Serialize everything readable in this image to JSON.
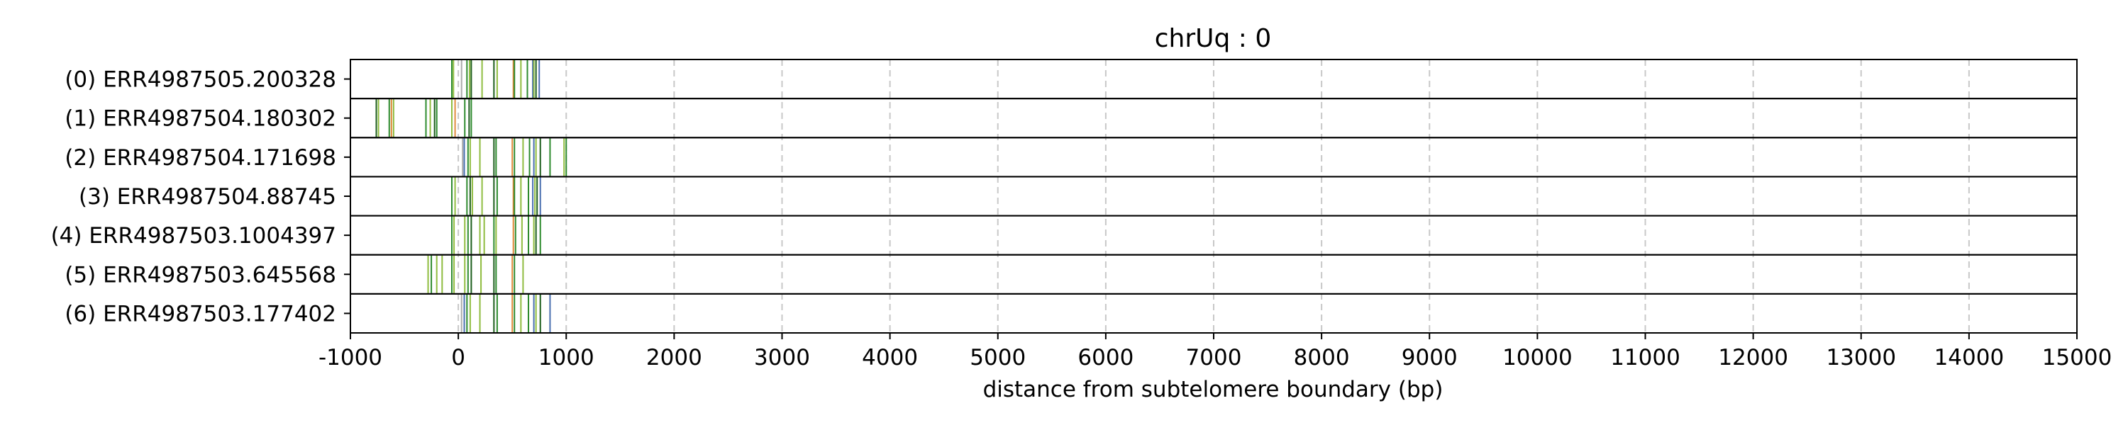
{
  "chart_data": {
    "type": "scatter",
    "title": "chrUq : 0",
    "xlabel": "distance from subtelomere boundary (bp)",
    "ylabel": "",
    "xlim": [
      -1000,
      15000
    ],
    "grid": "vertical-dashed",
    "x_ticks": [
      {
        "value": -1000,
        "label": "-1000"
      },
      {
        "value": 0,
        "label": "0"
      },
      {
        "value": 1000,
        "label": "1000"
      },
      {
        "value": 2000,
        "label": "2000"
      },
      {
        "value": 3000,
        "label": "3000"
      },
      {
        "value": 4000,
        "label": "4000"
      },
      {
        "value": 5000,
        "label": "5000"
      },
      {
        "value": 6000,
        "label": "6000"
      },
      {
        "value": 7000,
        "label": "7000"
      },
      {
        "value": 8000,
        "label": "8000"
      },
      {
        "value": 9000,
        "label": "9000"
      },
      {
        "value": 10000,
        "label": "10000"
      },
      {
        "value": 11000,
        "label": "11000"
      },
      {
        "value": 12000,
        "label": "12000"
      },
      {
        "value": 13000,
        "label": "13000"
      },
      {
        "value": 14000,
        "label": "14000"
      },
      {
        "value": 15000,
        "label": "15000"
      }
    ],
    "colors": {
      "green": "#2e8b2e",
      "darkgreen": "#1d5e1d",
      "olive": "#8fbc3f",
      "orange": "#e08a3c",
      "blue": "#4a6fb0",
      "gray": "#aaaaaa",
      "grid": "#c8c8c8"
    },
    "rows": [
      {
        "label": "(0) ERR4987505.200328",
        "marks": [
          {
            "x": -60,
            "c": "green"
          },
          {
            "x": -45,
            "c": "olive"
          },
          {
            "x": 30,
            "c": "gray"
          },
          {
            "x": 80,
            "c": "green"
          },
          {
            "x": 105,
            "c": "olive"
          },
          {
            "x": 120,
            "c": "darkgreen"
          },
          {
            "x": 220,
            "c": "olive"
          },
          {
            "x": 330,
            "c": "darkgreen"
          },
          {
            "x": 360,
            "c": "olive"
          },
          {
            "x": 510,
            "c": "orange"
          },
          {
            "x": 520,
            "c": "green"
          },
          {
            "x": 580,
            "c": "olive"
          },
          {
            "x": 640,
            "c": "green"
          },
          {
            "x": 690,
            "c": "blue"
          },
          {
            "x": 700,
            "c": "olive"
          },
          {
            "x": 720,
            "c": "darkgreen"
          },
          {
            "x": 750,
            "c": "blue"
          }
        ]
      },
      {
        "label": "(1) ERR4987504.180302",
        "marks": [
          {
            "x": -760,
            "c": "darkgreen"
          },
          {
            "x": -740,
            "c": "olive"
          },
          {
            "x": -640,
            "c": "green"
          },
          {
            "x": -620,
            "c": "orange"
          },
          {
            "x": -600,
            "c": "olive"
          },
          {
            "x": -300,
            "c": "green"
          },
          {
            "x": -260,
            "c": "olive"
          },
          {
            "x": -220,
            "c": "darkgreen"
          },
          {
            "x": -200,
            "c": "green"
          },
          {
            "x": -60,
            "c": "olive"
          },
          {
            "x": -30,
            "c": "orange"
          },
          {
            "x": 60,
            "c": "green"
          },
          {
            "x": 100,
            "c": "darkgreen"
          },
          {
            "x": 120,
            "c": "green"
          }
        ]
      },
      {
        "label": "(2) ERR4987504.171698",
        "marks": [
          {
            "x": 40,
            "c": "gray"
          },
          {
            "x": 55,
            "c": "blue"
          },
          {
            "x": 90,
            "c": "green"
          },
          {
            "x": 110,
            "c": "olive"
          },
          {
            "x": 200,
            "c": "olive"
          },
          {
            "x": 330,
            "c": "darkgreen"
          },
          {
            "x": 350,
            "c": "green"
          },
          {
            "x": 500,
            "c": "orange"
          },
          {
            "x": 520,
            "c": "green"
          },
          {
            "x": 600,
            "c": "olive"
          },
          {
            "x": 660,
            "c": "green"
          },
          {
            "x": 700,
            "c": "blue"
          },
          {
            "x": 720,
            "c": "olive"
          },
          {
            "x": 760,
            "c": "darkgreen"
          },
          {
            "x": 850,
            "c": "green"
          },
          {
            "x": 980,
            "c": "olive"
          },
          {
            "x": 1000,
            "c": "green"
          }
        ]
      },
      {
        "label": "(3) ERR4987504.88745",
        "marks": [
          {
            "x": -60,
            "c": "green"
          },
          {
            "x": -30,
            "c": "olive"
          },
          {
            "x": 80,
            "c": "green"
          },
          {
            "x": 110,
            "c": "darkgreen"
          },
          {
            "x": 130,
            "c": "olive"
          },
          {
            "x": 220,
            "c": "olive"
          },
          {
            "x": 330,
            "c": "darkgreen"
          },
          {
            "x": 360,
            "c": "green"
          },
          {
            "x": 510,
            "c": "orange"
          },
          {
            "x": 520,
            "c": "green"
          },
          {
            "x": 580,
            "c": "olive"
          },
          {
            "x": 650,
            "c": "green"
          },
          {
            "x": 690,
            "c": "blue"
          },
          {
            "x": 710,
            "c": "olive"
          },
          {
            "x": 730,
            "c": "darkgreen"
          },
          {
            "x": 760,
            "c": "blue"
          }
        ]
      },
      {
        "label": "(4) ERR4987503.1004397",
        "marks": [
          {
            "x": -60,
            "c": "green"
          },
          {
            "x": -40,
            "c": "olive"
          },
          {
            "x": 60,
            "c": "olive"
          },
          {
            "x": 90,
            "c": "green"
          },
          {
            "x": 120,
            "c": "darkgreen"
          },
          {
            "x": 200,
            "c": "olive"
          },
          {
            "x": 240,
            "c": "olive"
          },
          {
            "x": 330,
            "c": "green"
          },
          {
            "x": 350,
            "c": "olive"
          },
          {
            "x": 510,
            "c": "orange"
          },
          {
            "x": 530,
            "c": "green"
          },
          {
            "x": 590,
            "c": "olive"
          },
          {
            "x": 650,
            "c": "green"
          },
          {
            "x": 700,
            "c": "olive"
          },
          {
            "x": 720,
            "c": "darkgreen"
          },
          {
            "x": 760,
            "c": "green"
          }
        ]
      },
      {
        "label": "(5) ERR4987503.645568",
        "marks": [
          {
            "x": -280,
            "c": "olive"
          },
          {
            "x": -250,
            "c": "green"
          },
          {
            "x": -200,
            "c": "olive"
          },
          {
            "x": -150,
            "c": "olive"
          },
          {
            "x": -60,
            "c": "green"
          },
          {
            "x": -40,
            "c": "olive"
          },
          {
            "x": 60,
            "c": "olive"
          },
          {
            "x": 90,
            "c": "green"
          },
          {
            "x": 120,
            "c": "darkgreen"
          },
          {
            "x": 210,
            "c": "olive"
          },
          {
            "x": 330,
            "c": "darkgreen"
          },
          {
            "x": 350,
            "c": "green"
          },
          {
            "x": 500,
            "c": "orange"
          },
          {
            "x": 520,
            "c": "green"
          },
          {
            "x": 600,
            "c": "olive"
          }
        ]
      },
      {
        "label": "(6) ERR4987503.177402",
        "marks": [
          {
            "x": 30,
            "c": "gray"
          },
          {
            "x": 55,
            "c": "blue"
          },
          {
            "x": 80,
            "c": "green"
          },
          {
            "x": 110,
            "c": "olive"
          },
          {
            "x": 200,
            "c": "olive"
          },
          {
            "x": 330,
            "c": "darkgreen"
          },
          {
            "x": 360,
            "c": "green"
          },
          {
            "x": 500,
            "c": "orange"
          },
          {
            "x": 520,
            "c": "green"
          },
          {
            "x": 580,
            "c": "olive"
          },
          {
            "x": 650,
            "c": "green"
          },
          {
            "x": 700,
            "c": "blue"
          },
          {
            "x": 720,
            "c": "olive"
          },
          {
            "x": 760,
            "c": "darkgreen"
          },
          {
            "x": 850,
            "c": "blue"
          }
        ]
      }
    ]
  }
}
